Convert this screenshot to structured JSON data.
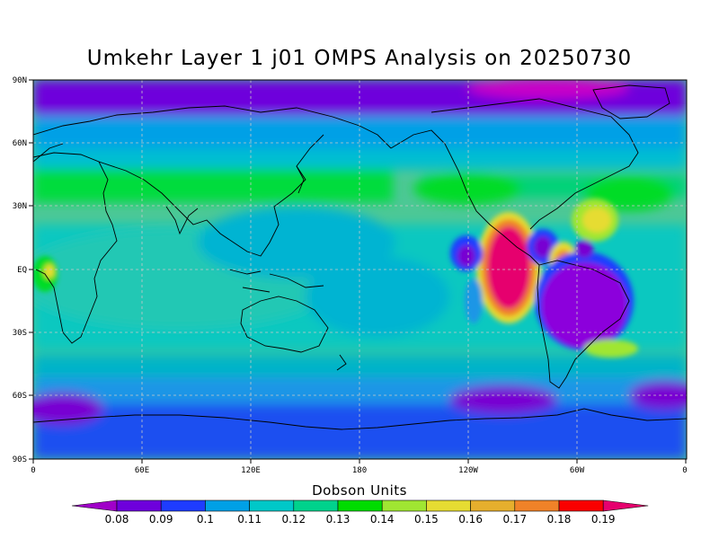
{
  "title": "Umkehr Layer 1 j01 OMPS Analysis on 20250730",
  "map": {
    "y_axis_labels": [
      "90N",
      "60N",
      "30N",
      "EQ",
      "30S",
      "60S",
      "90S"
    ],
    "x_axis_labels": [
      "0",
      "60E",
      "120E",
      "180",
      "120W",
      "60W",
      "0"
    ],
    "colors": {
      "background_field": "#4cc896",
      "coastline": "#000000",
      "gridline": "#c8c8c8"
    },
    "features": [
      "coastlines",
      "dashed-gridlines"
    ]
  },
  "colorbar": {
    "title": "Dobson Units",
    "labels": [
      "0.08",
      "0.09",
      "0.1",
      "0.11",
      "0.12",
      "0.13",
      "0.14",
      "0.15",
      "0.16",
      "0.17",
      "0.18",
      "0.19"
    ],
    "colors": [
      "#a000c8",
      "#6e00dc",
      "#1e3cff",
      "#00a0e6",
      "#00c8c8",
      "#00d28c",
      "#00dc00",
      "#a0e632",
      "#e6dc32",
      "#e6af2d",
      "#f08228",
      "#fa0000",
      "#e6006e"
    ]
  }
}
